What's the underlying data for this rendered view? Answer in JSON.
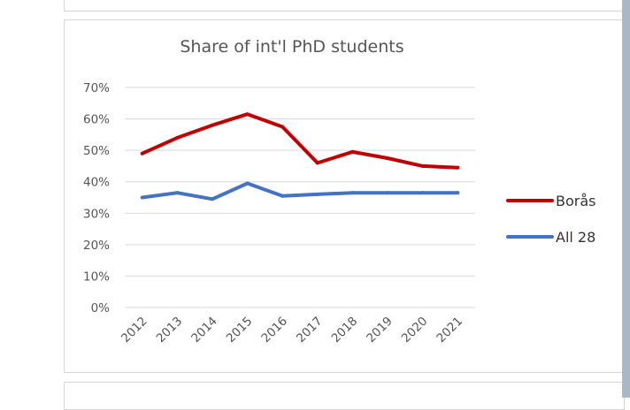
{
  "chart_data": {
    "type": "line",
    "title": "Share of int'l PhD students",
    "categories": [
      "2012",
      "2013",
      "2014",
      "2015",
      "2016",
      "2017",
      "2018",
      "2019",
      "2020",
      "2021"
    ],
    "y_ticks": [
      "0%",
      "10%",
      "20%",
      "30%",
      "40%",
      "50%",
      "60%",
      "70%"
    ],
    "ylim": [
      0,
      70
    ],
    "grid": true,
    "legend_position": "right",
    "series": [
      {
        "name": "Borås",
        "color": "#c00000",
        "values": [
          49,
          54,
          58,
          61.5,
          57.5,
          46,
          49.5,
          47.5,
          45,
          44.5
        ]
      },
      {
        "name": "All 28",
        "color": "#4472c4",
        "values": [
          35,
          36.5,
          34.5,
          39.5,
          35.5,
          36,
          36.5,
          36.5,
          36.5,
          36.5
        ]
      }
    ]
  }
}
